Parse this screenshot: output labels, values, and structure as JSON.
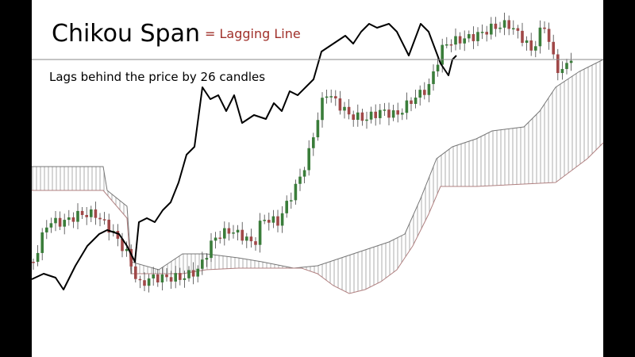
{
  "slide": {
    "title": "Chikou Span",
    "subtitle": "= Lagging Line",
    "caption": "Lags behind the price by 26 candles"
  }
}
